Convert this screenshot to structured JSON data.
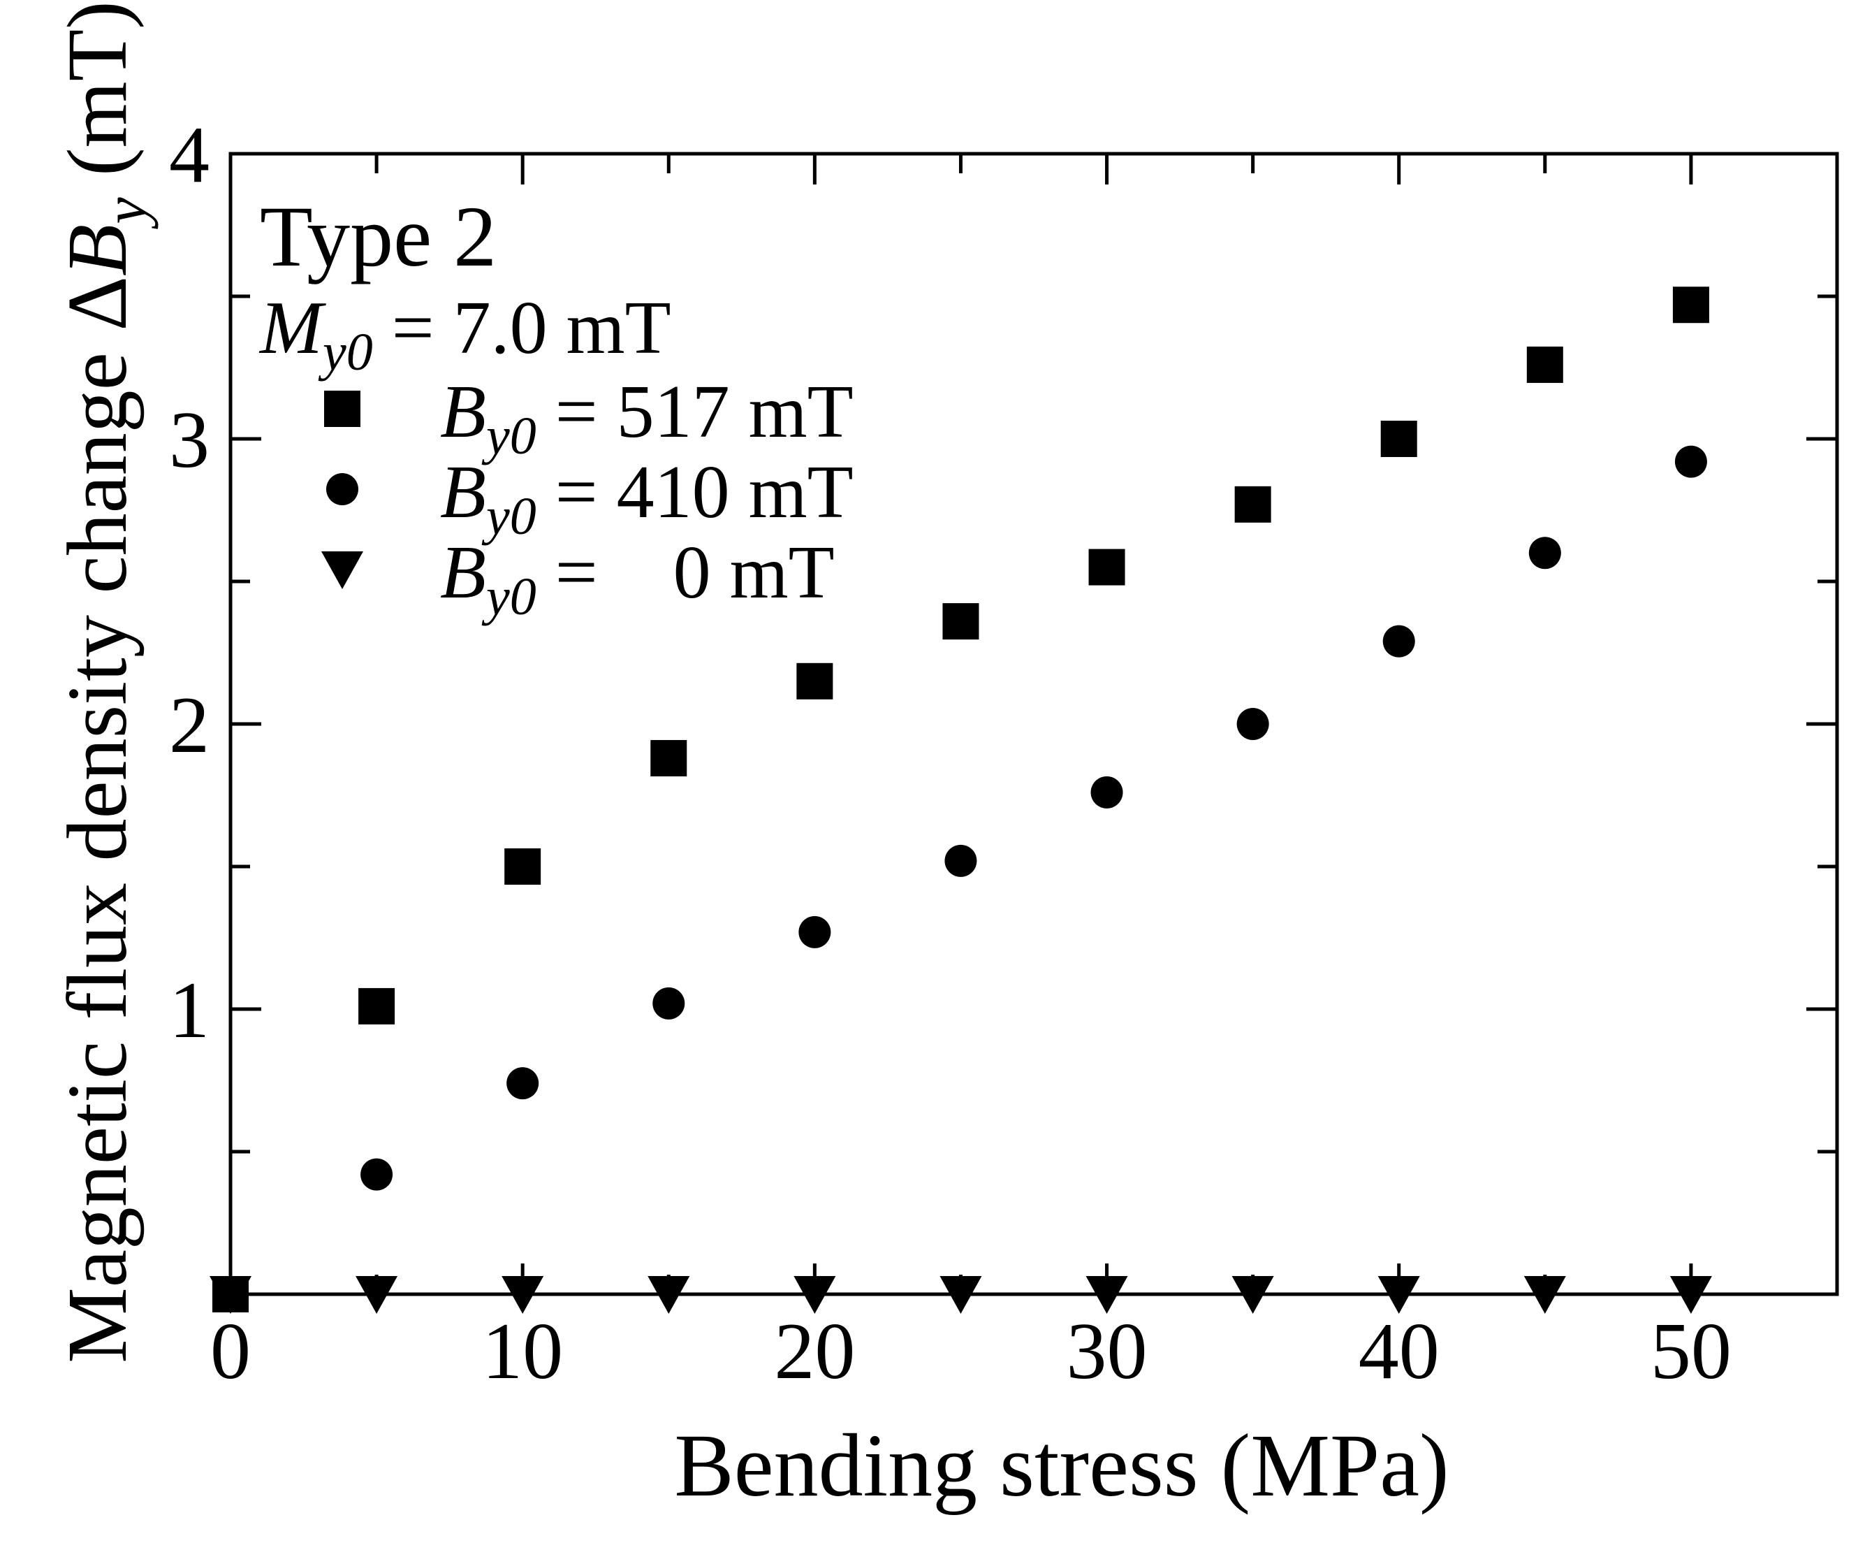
{
  "chart_data": {
    "type": "scatter",
    "xlabel": "Bending stress (MPa)",
    "ylabel": {
      "prefix": "Magnetic flux density change Δ",
      "var": "B",
      "sub": "y",
      "suffix": " (mT)"
    },
    "xlim": [
      0,
      55
    ],
    "ylim": [
      0,
      4
    ],
    "x_ticks": [
      0,
      10,
      20,
      30,
      40,
      50
    ],
    "x_minor_ticks": [
      5,
      15,
      25,
      35,
      45,
      55
    ],
    "y_ticks": [
      1,
      2,
      3,
      4
    ],
    "y_minor_ticks": [
      0.5,
      1.5,
      2.5,
      3.5
    ],
    "annotation": {
      "title": "Type 2",
      "param_var": "M",
      "param_sub": "y0",
      "param_value": " = 7.0 mT"
    },
    "legend_position": "top-left",
    "series": [
      {
        "name": "B_y0 = 517 mT",
        "label_var": "B",
        "label_sub": "y0",
        "label_value": " = 517 mT",
        "marker": "square",
        "x": [
          0,
          5,
          10,
          15,
          20,
          25,
          30,
          35,
          40,
          45,
          50
        ],
        "y": [
          0.0,
          1.01,
          1.5,
          1.88,
          2.15,
          2.36,
          2.55,
          2.77,
          3.0,
          3.26,
          3.47
        ]
      },
      {
        "name": "B_y0 = 410 mT",
        "label_var": "B",
        "label_sub": "y0",
        "label_value": " = 410 mT",
        "marker": "circle",
        "x": [
          0,
          5,
          10,
          15,
          20,
          25,
          30,
          35,
          40,
          45,
          50
        ],
        "y": [
          0.0,
          0.42,
          0.74,
          1.02,
          1.27,
          1.52,
          1.76,
          2.0,
          2.29,
          2.6,
          2.92
        ]
      },
      {
        "name": "B_y0 = 0 mT",
        "label_var": "B",
        "label_sub": "y0",
        "label_value": " =    0 mT",
        "marker": "triangle-down",
        "x": [
          0,
          5,
          10,
          15,
          20,
          25,
          30,
          35,
          40,
          45,
          50
        ],
        "y": [
          0.0,
          0.0,
          0.0,
          0.0,
          0.0,
          0.0,
          0.0,
          0.0,
          0.0,
          0.0,
          0.0
        ]
      }
    ]
  }
}
